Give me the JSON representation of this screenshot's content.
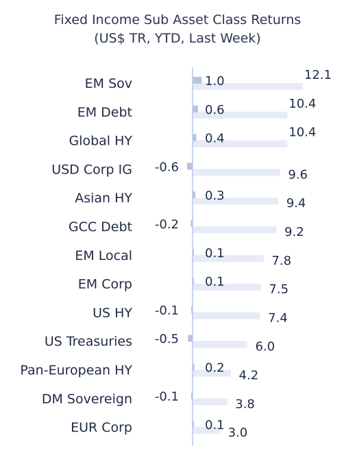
{
  "chart_data": {
    "type": "bar",
    "orientation": "horizontal",
    "title": "Fixed Income Sub Asset Class Returns",
    "subtitle": "(US$ TR, YTD, Last Week)",
    "categories": [
      "EM Sov",
      "EM Debt",
      "Global HY",
      "USD Corp IG",
      "Asian HY",
      "GCC Debt",
      "EM Local",
      "EM Corp",
      "US HY",
      "US Treasuries",
      "Pan-European HY",
      "DM Sovereign",
      "EUR Corp"
    ],
    "series": [
      {
        "values": [
          1.0,
          0.6,
          0.4,
          -0.6,
          0.3,
          -0.2,
          0.1,
          0.1,
          -0.1,
          -0.5,
          0.2,
          -0.1,
          0.1
        ]
      },
      {
        "values": [
          12.1,
          10.4,
          10.4,
          9.6,
          9.4,
          9.2,
          7.8,
          7.5,
          7.4,
          6.0,
          4.2,
          3.8,
          3.0
        ]
      }
    ],
    "value_labels": {
      "last_week": [
        "1.0",
        "0.6",
        "0.4",
        "-0.6",
        "0.3",
        "-0.2",
        "0.1",
        "0.1",
        "-0.1",
        "-0.5",
        "0.2",
        "-0.1",
        "0.1"
      ],
      "ytd": [
        "12.1",
        "10.4",
        "10.4",
        "9.6",
        "9.4",
        "9.2",
        "7.8",
        "7.5",
        "7.4",
        "6.0",
        "4.2",
        "3.8",
        "3.0"
      ]
    },
    "colors": {
      "last_week": "#b8c3df",
      "ytd": "#e6ebf7",
      "axis": "#b9c8ea"
    },
    "grid": false,
    "legend": "none"
  }
}
